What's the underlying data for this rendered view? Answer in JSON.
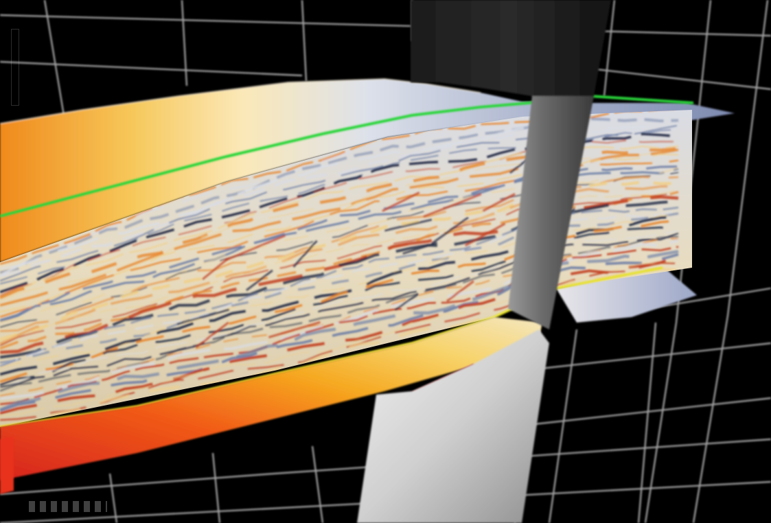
{
  "scene": {
    "background_color": "#000000",
    "grid_color": "#bdbdbd",
    "horizon_colors": {
      "top": "#2cd63a",
      "bottom": "#e6e22c"
    },
    "seismic_palette": [
      "#1b2440",
      "#6e7fa6",
      "#d9dde6",
      "#f0d08a",
      "#e8862a",
      "#c0391b"
    ],
    "surface_gradient": [
      "#e8862a",
      "#f5c95a",
      "#fbe8b8",
      "#d5d9e6",
      "#8f9bbd"
    ],
    "base_gradient": [
      "#d2221c",
      "#f04a1a",
      "#f69a1e",
      "#f6c24a"
    ],
    "well_colors": {
      "upper": "#151515",
      "lower": "#dcdcdc",
      "marker": "#b50c0c"
    }
  },
  "icons": {
    "scale_bar": "vertical-scale-icon",
    "depth_ruler": "ruler-icon"
  }
}
